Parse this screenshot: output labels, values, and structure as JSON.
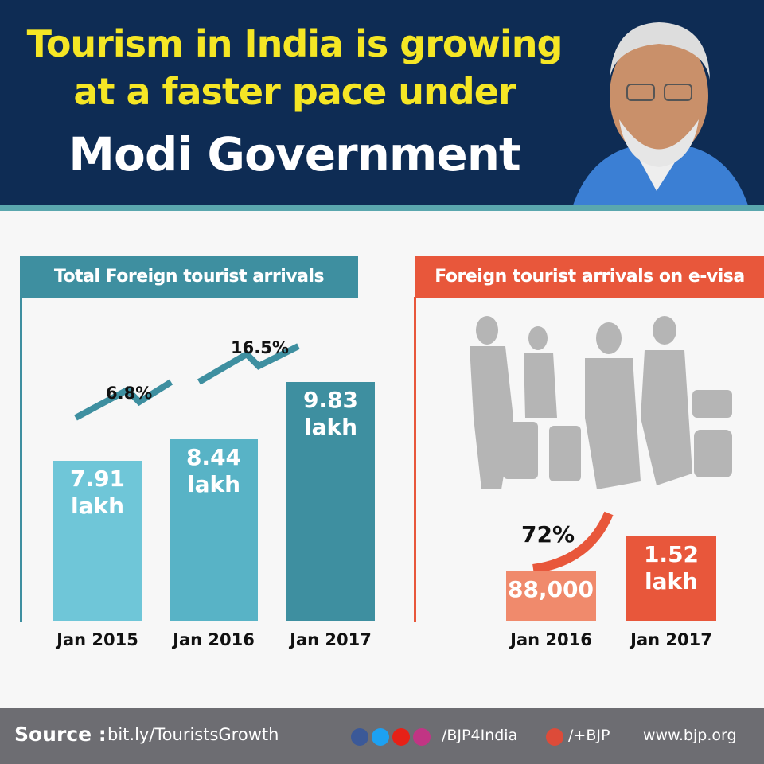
{
  "header": {
    "title_lines": [
      "Tourism in India is growing",
      "at a faster pace under",
      "Modi Government"
    ]
  },
  "chart_data": [
    {
      "type": "bar",
      "title": "Total Foreign tourist arrivals",
      "categories": [
        "Jan 2015",
        "Jan 2016",
        "Jan 2017"
      ],
      "values": [
        7.91,
        8.44,
        9.83
      ],
      "value_labels": [
        "7.91 lakh",
        "8.44 lakh",
        "9.83 lakh"
      ],
      "colors": [
        "#6fc6d8",
        "#58b3c6",
        "#3e8fa0"
      ],
      "ylim": [
        4,
        11
      ],
      "annotations": [
        "6.8%",
        "16.5%"
      ]
    },
    {
      "type": "bar",
      "title": "Foreign tourist arrivals on e-visa",
      "categories": [
        "Jan 2016",
        "Jan 2017"
      ],
      "values": [
        88000,
        152000
      ],
      "value_labels": [
        "88,000",
        "1.52 lakh"
      ],
      "colors": [
        "#f08a6c",
        "#e8573b"
      ],
      "ylim": [
        0,
        300000
      ],
      "annotations": [
        "72%"
      ]
    }
  ],
  "footer": {
    "source_label": "Source :",
    "source_url": "bit.ly/TouristsGrowth",
    "handle": "/BJP4India",
    "gplus": "/+BJP",
    "website": "www.bjp.org"
  }
}
